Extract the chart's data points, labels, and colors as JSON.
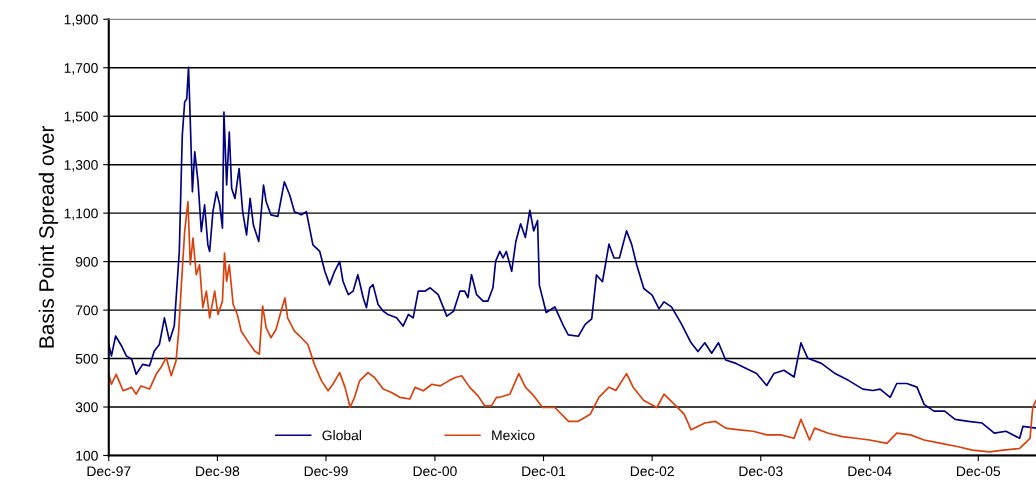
{
  "chart_data": {
    "type": "line",
    "ylabel": "Basis Point Spread over",
    "ylim": [
      100,
      1900
    ],
    "yticks": [
      {
        "value": 100,
        "label": "100"
      },
      {
        "value": 300,
        "label": "300"
      },
      {
        "value": 500,
        "label": "500"
      },
      {
        "value": 700,
        "label": "700"
      },
      {
        "value": 900,
        "label": "900"
      },
      {
        "value": 1100,
        "label": "1,100"
      },
      {
        "value": 1300,
        "label": "1,300"
      },
      {
        "value": 1500,
        "label": "1,500"
      },
      {
        "value": 1700,
        "label": "1,700"
      },
      {
        "value": 1900,
        "label": "1,900"
      }
    ],
    "xlim": [
      "1997-12-01",
      "2006-06-13"
    ],
    "xticks": [
      {
        "value": "1997-12-01",
        "label": "Dec-97"
      },
      {
        "value": "1998-12-01",
        "label": "Dec-98"
      },
      {
        "value": "1999-12-01",
        "label": "Dec-99"
      },
      {
        "value": "2000-12-01",
        "label": "Dec-00"
      },
      {
        "value": "2001-12-01",
        "label": "Dec-01"
      },
      {
        "value": "2002-12-01",
        "label": "Dec-02"
      },
      {
        "value": "2003-12-01",
        "label": "Dec-03"
      },
      {
        "value": "2004-12-01",
        "label": "Dec-04"
      },
      {
        "value": "2005-12-01",
        "label": "Dec-05"
      }
    ],
    "grid": "y",
    "legend": "bottom",
    "marker": "none",
    "line_style": "solid",
    "series": [
      {
        "name": "Global",
        "color": "#000080",
        "x": [
          "1997-12-01",
          "1997-12-10",
          "1997-12-24",
          "1998-01-13",
          "1998-01-29",
          "1998-02-16",
          "1998-03-03",
          "1998-03-25",
          "1998-04-17",
          "1998-05-03",
          "1998-05-20",
          "1998-06-06",
          "1998-06-23",
          "1998-07-09",
          "1998-07-26",
          "1998-08-05",
          "1998-08-13",
          "1998-08-20",
          "1998-08-26",
          "1998-09-01",
          "1998-09-08",
          "1998-09-16",
          "1998-09-27",
          "1998-10-08",
          "1998-10-19",
          "1998-10-30",
          "1998-11-05",
          "1998-11-16",
          "1998-11-28",
          "1998-12-09",
          "1998-12-18",
          "1998-12-23",
          "1999-01-01",
          "1999-01-10",
          "1999-01-18",
          "1999-01-29",
          "1999-02-12",
          "1999-02-24",
          "1999-03-09",
          "1999-03-21",
          "1999-04-01",
          "1999-04-19",
          "1999-05-05",
          "1999-05-14",
          "1999-05-30",
          "1999-06-22",
          "1999-07-14",
          "1999-08-01",
          "1999-08-17",
          "1999-09-09",
          "1999-09-26",
          "1999-10-18",
          "1999-11-10",
          "1999-11-27",
          "1999-12-13",
          "1999-12-30",
          "2000-01-16",
          "2000-01-27",
          "2000-02-14",
          "2000-03-01",
          "2000-03-17",
          "2000-04-04",
          "2000-04-15",
          "2000-04-26",
          "2000-05-07",
          "2000-05-24",
          "2000-06-10",
          "2000-06-26",
          "2000-07-25",
          "2000-08-16",
          "2000-09-03",
          "2000-09-19",
          "2000-10-06",
          "2000-10-28",
          "2000-11-15",
          "2000-12-12",
          "2001-01-10",
          "2001-02-02",
          "2001-02-23",
          "2001-03-11",
          "2001-03-22",
          "2001-04-03",
          "2001-04-20",
          "2001-05-12",
          "2001-05-28",
          "2001-06-14",
          "2001-06-23",
          "2001-07-07",
          "2001-07-18",
          "2001-07-29",
          "2001-08-16",
          "2001-08-30",
          "2001-09-15",
          "2001-10-01",
          "2001-10-16",
          "2001-10-29",
          "2001-11-11",
          "2001-11-17",
          "2001-12-10",
          "2002-01-08",
          "2002-02-06",
          "2002-02-22",
          "2002-03-28",
          "2002-04-20",
          "2002-05-12",
          "2002-05-28",
          "2002-06-17",
          "2002-07-09",
          "2002-07-26",
          "2002-08-13",
          "2002-09-06",
          "2002-09-23",
          "2002-10-10",
          "2002-11-03",
          "2002-12-01",
          "2002-12-24",
          "2003-01-10",
          "2003-02-04",
          "2003-03-07",
          "2003-04-11",
          "2003-05-04",
          "2003-05-27",
          "2003-06-19",
          "2003-07-12",
          "2003-08-05",
          "2003-09-09",
          "2003-10-01",
          "2003-11-17",
          "2003-12-21",
          "2004-01-14",
          "2004-02-17",
          "2004-03-22",
          "2004-04-14",
          "2004-05-07",
          "2004-06-22",
          "2004-08-07",
          "2004-09-22",
          "2004-11-08",
          "2004-12-12",
          "2005-01-05",
          "2005-02-08",
          "2005-03-02",
          "2005-04-05",
          "2005-05-09",
          "2005-06-02",
          "2005-07-05",
          "2005-08-10",
          "2005-09-14",
          "2005-10-29",
          "2005-12-14",
          "2006-01-24",
          "2006-03-04",
          "2006-04-19",
          "2006-04-30",
          "2006-06-13"
        ],
        "values": [
          558,
          511,
          593,
          552,
          511,
          497,
          435,
          476,
          470,
          531,
          558,
          668,
          572,
          634,
          942,
          1421,
          1558,
          1572,
          1702,
          1476,
          1188,
          1353,
          1229,
          1024,
          1134,
          969,
          942,
          1106,
          1188,
          1134,
          1038,
          1517,
          1216,
          1435,
          1202,
          1161,
          1284,
          1106,
          1010,
          1161,
          1051,
          983,
          1216,
          1147,
          1093,
          1086,
          1229,
          1175,
          1106,
          1093,
          1106,
          969,
          942,
          860,
          805,
          860,
          901,
          819,
          764,
          778,
          846,
          751,
          710,
          792,
          805,
          723,
          696,
          682,
          668,
          634,
          682,
          668,
          778,
          778,
          792,
          764,
          675,
          696,
          778,
          778,
          751,
          846,
          764,
          737,
          737,
          792,
          901,
          942,
          915,
          942,
          860,
          983,
          1056,
          1000,
          1112,
          1027,
          1070,
          803,
          690,
          713,
          635,
          598,
          592,
          641,
          664,
          845,
          817,
          972,
          915,
          915,
          1027,
          972,
          887,
          789,
          762,
          705,
          734,
          713,
          648,
          565,
          529,
          565,
          522,
          565,
          494,
          480,
          466,
          438,
          389,
          438,
          452,
          424,
          565,
          501,
          480,
          438,
          409,
          374,
          368,
          374,
          340,
          397,
          397,
          382,
          311,
          283,
          283,
          249,
          241,
          234,
          192,
          200,
          171,
          220,
          213
        ]
      },
      {
        "name": "Mexico",
        "color": "#d9400b",
        "x": [
          "1997-12-01",
          "1997-12-10",
          "1997-12-26",
          "1998-01-18",
          "1998-02-16",
          "1998-03-03",
          "1998-03-19",
          "1998-04-17",
          "1998-05-09",
          "1998-05-25",
          "1998-06-12",
          "1998-06-29",
          "1998-07-15",
          "1998-07-24",
          "1998-08-02",
          "1998-08-13",
          "1998-08-24",
          "1998-09-01",
          "1998-09-10",
          "1998-09-21",
          "1998-10-02",
          "1998-10-13",
          "1998-10-25",
          "1998-11-05",
          "1998-11-22",
          "1998-12-03",
          "1998-12-18",
          "1998-12-25",
          "1999-01-01",
          "1999-01-10",
          "1999-01-23",
          "1999-02-06",
          "1999-02-19",
          "1999-03-13",
          "1999-04-05",
          "1999-04-21",
          "1999-05-02",
          "1999-05-14",
          "1999-05-30",
          "1999-06-16",
          "1999-07-03",
          "1999-07-16",
          "1999-07-25",
          "1999-08-17",
          "1999-09-09",
          "1999-10-01",
          "1999-10-23",
          "1999-11-16",
          "1999-12-08",
          "1999-12-24",
          "2000-01-16",
          "2000-02-03",
          "2000-02-20",
          "2000-03-06",
          "2000-03-23",
          "2000-04-20",
          "2000-05-12",
          "2000-06-10",
          "2000-07-08",
          "2000-08-05",
          "2000-09-08",
          "2000-09-25",
          "2000-10-23",
          "2000-11-21",
          "2000-12-18",
          "2001-01-16",
          "2001-02-08",
          "2001-03-01",
          "2001-03-28",
          "2001-04-25",
          "2001-05-17",
          "2001-06-09",
          "2001-06-26",
          "2001-07-07",
          "2001-08-10",
          "2001-09-09",
          "2001-10-01",
          "2001-10-29",
          "2001-11-28",
          "2002-01-08",
          "2002-02-23",
          "2002-03-28",
          "2002-05-07",
          "2002-06-05",
          "2002-07-09",
          "2002-08-01",
          "2002-09-06",
          "2002-09-28",
          "2002-11-03",
          "2002-12-17",
          "2003-01-10",
          "2003-02-14",
          "2003-03-19",
          "2003-04-11",
          "2003-05-27",
          "2003-07-01",
          "2003-08-05",
          "2003-09-20",
          "2003-11-05",
          "2003-12-21",
          "2004-02-06",
          "2004-03-22",
          "2004-04-14",
          "2004-05-13",
          "2004-05-30",
          "2004-07-15",
          "2004-08-31",
          "2004-10-16",
          "2004-12-01",
          "2005-01-28",
          "2005-03-02",
          "2005-04-17",
          "2005-06-02",
          "2005-07-29",
          "2005-09-25",
          "2005-11-11",
          "2006-01-08",
          "2006-02-23",
          "2006-04-19",
          "2006-05-24",
          "2006-06-02",
          "2006-06-13"
        ],
        "values": [
          435,
          394,
          435,
          367,
          381,
          353,
          387,
          374,
          435,
          463,
          504,
          429,
          490,
          613,
          805,
          1024,
          1147,
          887,
          997,
          846,
          887,
          710,
          778,
          668,
          778,
          682,
          737,
          935,
          819,
          887,
          723,
          682,
          613,
          572,
          531,
          518,
          717,
          627,
          586,
          620,
          696,
          750,
          668,
          613,
          586,
          558,
          476,
          408,
          367,
          394,
          442,
          381,
          299,
          340,
          408,
          442,
          422,
          374,
          360,
          340,
          333,
          381,
          367,
          394,
          387,
          408,
          422,
          429,
          381,
          346,
          305,
          305,
          340,
          340,
          353,
          438,
          382,
          347,
          298,
          298,
          241,
          241,
          270,
          340,
          382,
          368,
          438,
          382,
          327,
          298,
          353,
          311,
          270,
          206,
          234,
          241,
          213,
          206,
          200,
          185,
          185,
          171,
          249,
          164,
          213,
          192,
          178,
          171,
          164,
          150,
          192,
          185,
          164,
          150,
          136,
          122,
          115,
          122,
          129,
          171,
          298,
          327
        ]
      }
    ]
  }
}
